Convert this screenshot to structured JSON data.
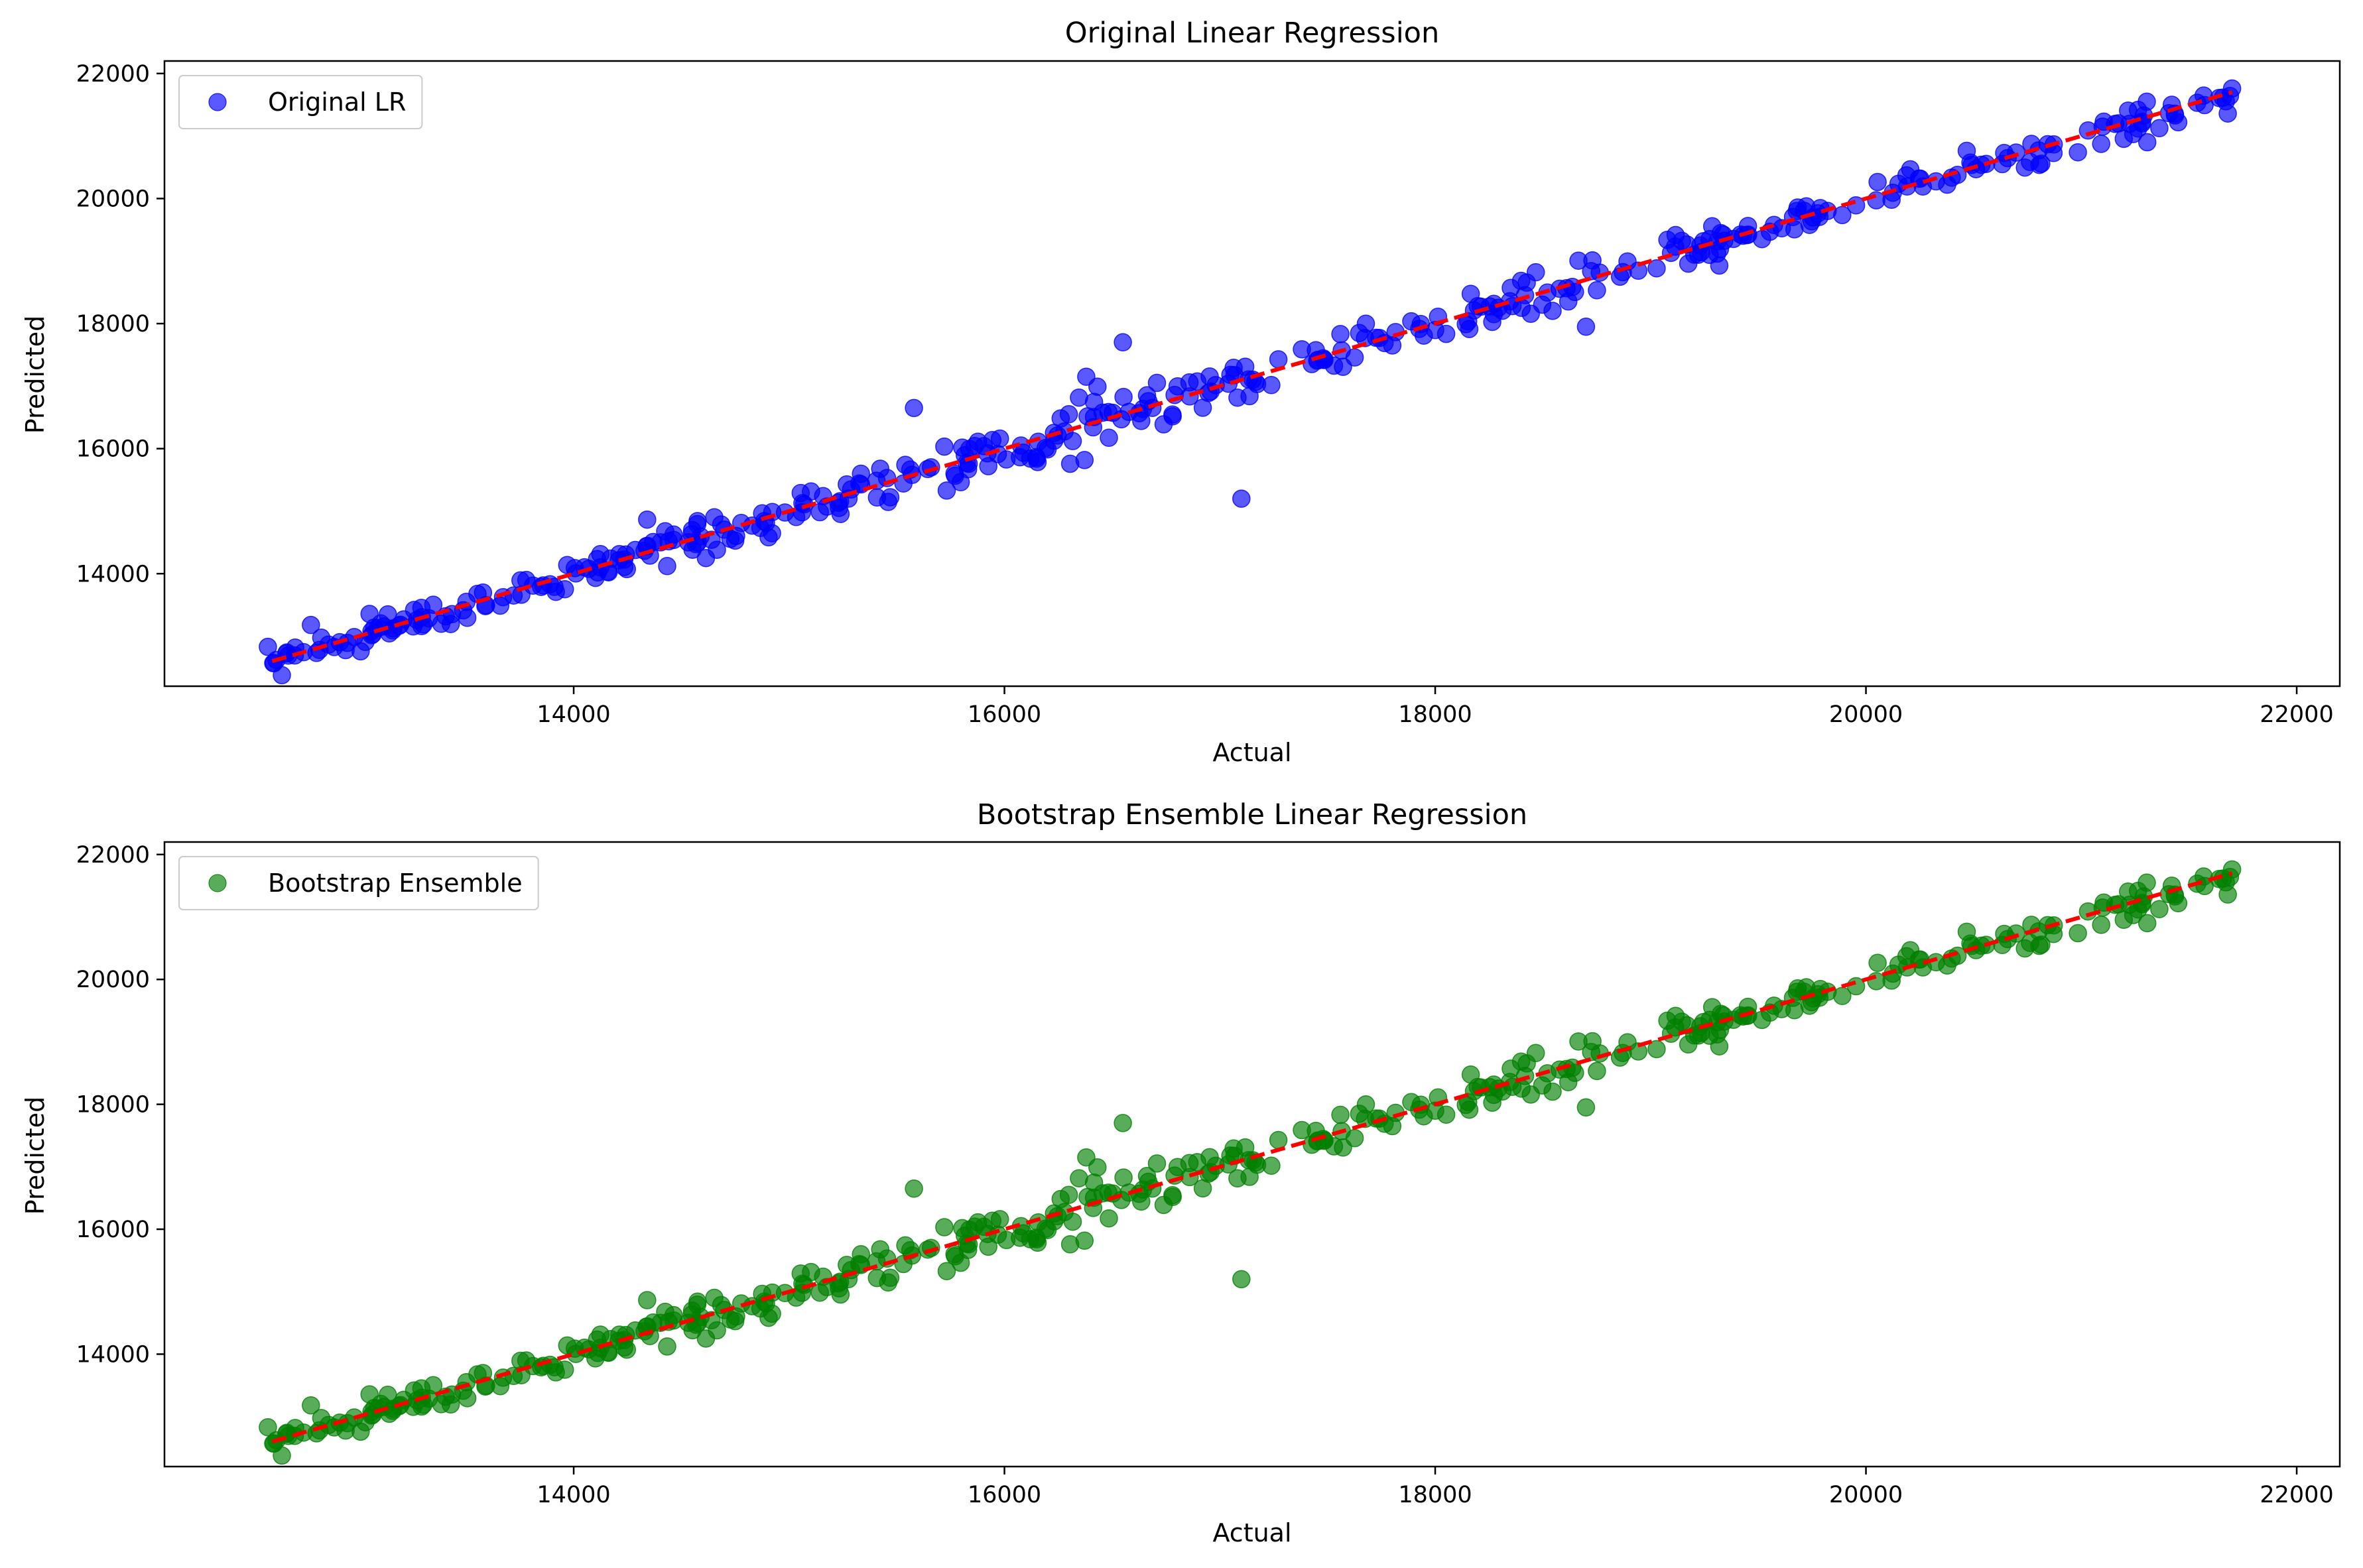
{
  "chart_data": [
    {
      "type": "scatter",
      "title": "Original Linear Regression",
      "xlabel": "Actual",
      "ylabel": "Predicted",
      "xlim": [
        12100,
        22200
      ],
      "ylim": [
        12200,
        22200
      ],
      "xticks": [
        14000,
        16000,
        18000,
        20000,
        22000
      ],
      "yticks": [
        14000,
        16000,
        18000,
        20000,
        22000
      ],
      "grid": false,
      "legend": "top-left",
      "series": [
        {
          "name": "Original LR",
          "color": "#0000ff",
          "alpha": 0.65,
          "marker": "circle"
        }
      ],
      "reference_line": {
        "style": "dashed",
        "color": "#ff0000",
        "from": [
          12600,
          12600
        ],
        "to": [
          21700,
          21700
        ]
      },
      "outliers": [
        [
          17100,
          15200
        ],
        [
          16550,
          17700
        ],
        [
          15580,
          16650
        ],
        [
          16380,
          17150
        ],
        [
          18700,
          17950
        ]
      ]
    },
    {
      "type": "scatter",
      "title": "Bootstrap Ensemble Linear Regression",
      "xlabel": "Actual",
      "ylabel": "Predicted",
      "xlim": [
        12100,
        22200
      ],
      "ylim": [
        12200,
        22200
      ],
      "xticks": [
        14000,
        16000,
        18000,
        20000,
        22000
      ],
      "yticks": [
        14000,
        16000,
        18000,
        20000,
        22000
      ],
      "grid": false,
      "legend": "top-left",
      "series": [
        {
          "name": "Bootstrap Ensemble",
          "color": "#008000",
          "alpha": 0.65,
          "marker": "circle"
        }
      ],
      "reference_line": {
        "style": "dashed",
        "color": "#ff0000",
        "from": [
          12600,
          12600
        ],
        "to": [
          21700,
          21700
        ]
      },
      "outliers": [
        [
          17100,
          15200
        ],
        [
          16550,
          17700
        ],
        [
          15580,
          16650
        ],
        [
          16380,
          17150
        ],
        [
          18700,
          17950
        ]
      ]
    }
  ]
}
